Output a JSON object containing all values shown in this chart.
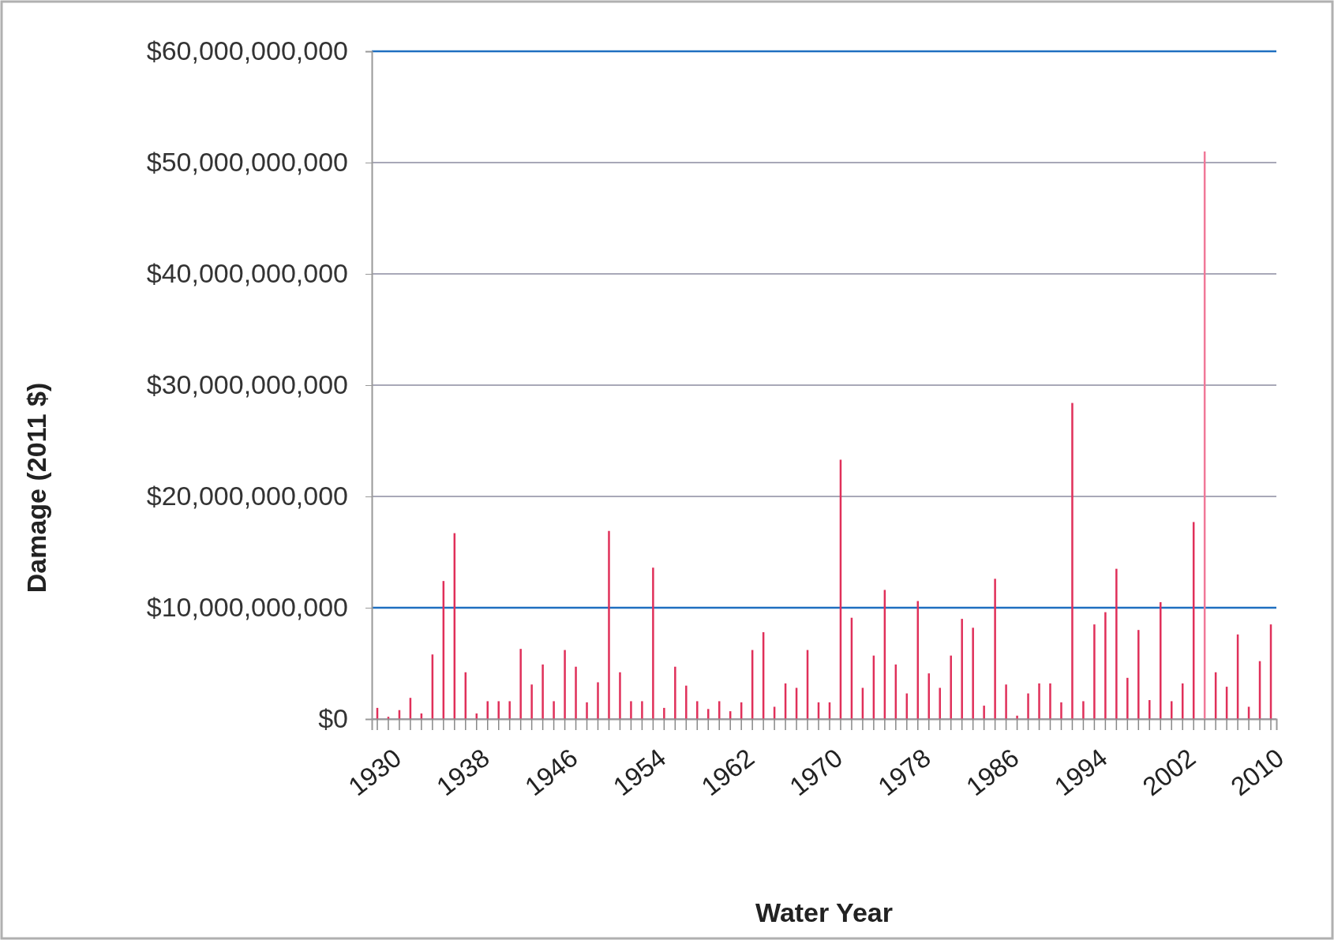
{
  "chart_data": {
    "type": "bar",
    "xlabel": "Water Year",
    "ylabel": "Damage (2011 $)",
    "categories": [
      "1930",
      null,
      null,
      null,
      null,
      null,
      null,
      null,
      "1938",
      null,
      null,
      null,
      null,
      null,
      null,
      null,
      "1946",
      null,
      null,
      null,
      null,
      null,
      null,
      null,
      "1954",
      null,
      null,
      null,
      null,
      null,
      null,
      null,
      "1962",
      null,
      null,
      null,
      null,
      null,
      null,
      null,
      "1970",
      null,
      null,
      null,
      null,
      null,
      null,
      null,
      "1978",
      null,
      null,
      null,
      null,
      null,
      null,
      null,
      "1986",
      null,
      null,
      null,
      null,
      null,
      null,
      null,
      "1994",
      null,
      null,
      null,
      null,
      null,
      null,
      null,
      "2002",
      null,
      null,
      null,
      null,
      null,
      null,
      null,
      "2010",
      null
    ],
    "values": [
      1000000000,
      200000000,
      800000000,
      1900000000,
      500000000,
      5800000000,
      12400000000,
      16700000000,
      4200000000,
      500000000,
      1600000000,
      1600000000,
      1600000000,
      6300000000,
      3100000000,
      4900000000,
      1600000000,
      6200000000,
      4700000000,
      1500000000,
      3300000000,
      16900000000,
      4200000000,
      1600000000,
      1600000000,
      13600000000,
      1000000000,
      4700000000,
      3000000000,
      1600000000,
      900000000,
      1600000000,
      700000000,
      1500000000,
      6200000000,
      7800000000,
      1100000000,
      3200000000,
      2800000000,
      6200000000,
      1500000000,
      1500000000,
      23300000000,
      9100000000,
      2800000000,
      5700000000,
      11600000000,
      4900000000,
      2300000000,
      10600000000,
      4100000000,
      2800000000,
      5700000000,
      9000000000,
      8200000000,
      1200000000,
      12600000000,
      3100000000,
      300000000,
      2300000000,
      3200000000,
      3200000000,
      1500000000,
      28400000000,
      1600000000,
      8500000000,
      9600000000,
      13500000000,
      3700000000,
      8000000000,
      1700000000,
      10500000000,
      1600000000,
      3200000000,
      17700000000,
      51000000000,
      4200000000,
      2900000000,
      7600000000,
      1100000000,
      5200000000,
      8500000000
    ],
    "colors": [
      "#e0305a",
      "#e0305a",
      "#e0305a",
      "#e0305a",
      "#e0305a",
      "#e0305a",
      "#e0305a",
      "#e0305a",
      "#e0305a",
      "#e0305a",
      "#e0305a",
      "#e0305a",
      "#e0305a",
      "#e0305a",
      "#e0305a",
      "#e0305a",
      "#e0305a",
      "#e0305a",
      "#e0305a",
      "#e0305a",
      "#e0305a",
      "#e0305a",
      "#e0305a",
      "#e0305a",
      "#e0305a",
      "#e0305a",
      "#e0305a",
      "#e0305a",
      "#e0305a",
      "#e0305a",
      "#e0305a",
      "#e0305a",
      "#e0305a",
      "#e0305a",
      "#e0305a",
      "#e0305a",
      "#e0305a",
      "#e0305a",
      "#e0305a",
      "#e0305a",
      "#e0305a",
      "#e0305a",
      "#e0305a",
      "#e0305a",
      "#e0305a",
      "#e0305a",
      "#e0305a",
      "#e0305a",
      "#e0305a",
      "#e0305a",
      "#e0305a",
      "#e0305a",
      "#e0305a",
      "#e0305a",
      "#e0305a",
      "#e0305a",
      "#e0305a",
      "#e0305a",
      "#e0305a",
      "#e0305a",
      "#e0305a",
      "#e0305a",
      "#e0305a",
      "#e0305a",
      "#e0305a",
      "#e0305a",
      "#e0305a",
      "#e0305a",
      "#e0305a",
      "#e0305a",
      "#e0305a",
      "#e0305a",
      "#e0305a",
      "#e0305a",
      "#e0305a",
      "#f07898",
      "#e0305a",
      "#e0305a",
      "#e0305a",
      "#e0305a",
      "#e0305a",
      "#e0305a"
    ],
    "ylim": [
      0,
      60000000000
    ],
    "yticks": [
      {
        "value": 0,
        "label": "$0"
      },
      {
        "value": 10000000000,
        "label": "$10,000,000,000"
      },
      {
        "value": 20000000000,
        "label": "$20,000,000,000"
      },
      {
        "value": 30000000000,
        "label": "$30,000,000,000"
      },
      {
        "value": 40000000000,
        "label": "$40,000,000,000"
      },
      {
        "value": 50000000000,
        "label": "$50,000,000,000"
      },
      {
        "value": 60000000000,
        "label": "$60,000,000,000"
      }
    ],
    "grid": "y",
    "ref_lines": [
      {
        "axis": "y",
        "value": 10000000000,
        "color": "#1f6fc0"
      },
      {
        "axis": "y",
        "value": 60000000000,
        "color": "#1f6fc0"
      }
    ]
  }
}
